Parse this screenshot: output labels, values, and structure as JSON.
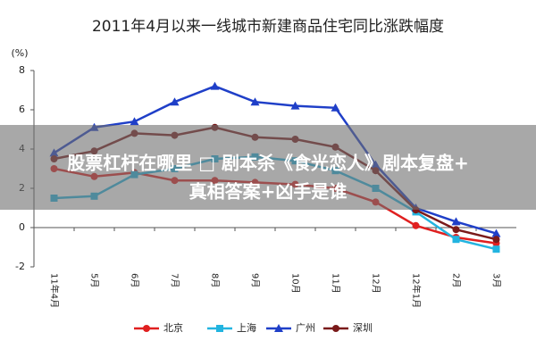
{
  "chart_data": {
    "type": "line",
    "title": "2011年4月以来一线城市新建商品住宅同比涨跌幅度",
    "y_label": "(%)",
    "categories": [
      "11年4月",
      "5月",
      "6月",
      "7月",
      "8月",
      "9月",
      "10月",
      "11月",
      "12月",
      "12年1月",
      "2月",
      "3月"
    ],
    "series": [
      {
        "name": "北京",
        "color": "#e02020",
        "marker": "circle",
        "values": [
          3.0,
          2.6,
          2.8,
          2.4,
          2.4,
          2.3,
          2.2,
          2.0,
          1.3,
          0.1,
          -0.5,
          -0.8
        ]
      },
      {
        "name": "上海",
        "color": "#22b4e0",
        "marker": "square",
        "values": [
          1.5,
          1.6,
          2.7,
          3.0,
          3.5,
          3.6,
          3.4,
          2.9,
          2.0,
          0.8,
          -0.6,
          -1.1
        ]
      },
      {
        "name": "广州",
        "color": "#1f3fc8",
        "marker": "triangle",
        "values": [
          3.8,
          5.1,
          5.4,
          6.4,
          7.2,
          6.4,
          6.2,
          6.1,
          3.2,
          1.0,
          0.3,
          -0.3
        ]
      },
      {
        "name": "深圳",
        "color": "#7a1a1a",
        "marker": "circle",
        "values": [
          3.5,
          3.9,
          4.8,
          4.7,
          5.1,
          4.6,
          4.5,
          4.1,
          2.9,
          0.9,
          -0.1,
          -0.6
        ]
      }
    ],
    "ylim": [
      -2,
      8
    ],
    "yticks": [
      -2,
      0,
      2,
      4,
      6,
      8
    ],
    "legend": "bottom"
  },
  "banner": {
    "lines": [
      "股票杠杆在哪里 □ 剧本杀《食光恋人》剧本复盘+",
      "真相答案+凶手是谁"
    ]
  }
}
